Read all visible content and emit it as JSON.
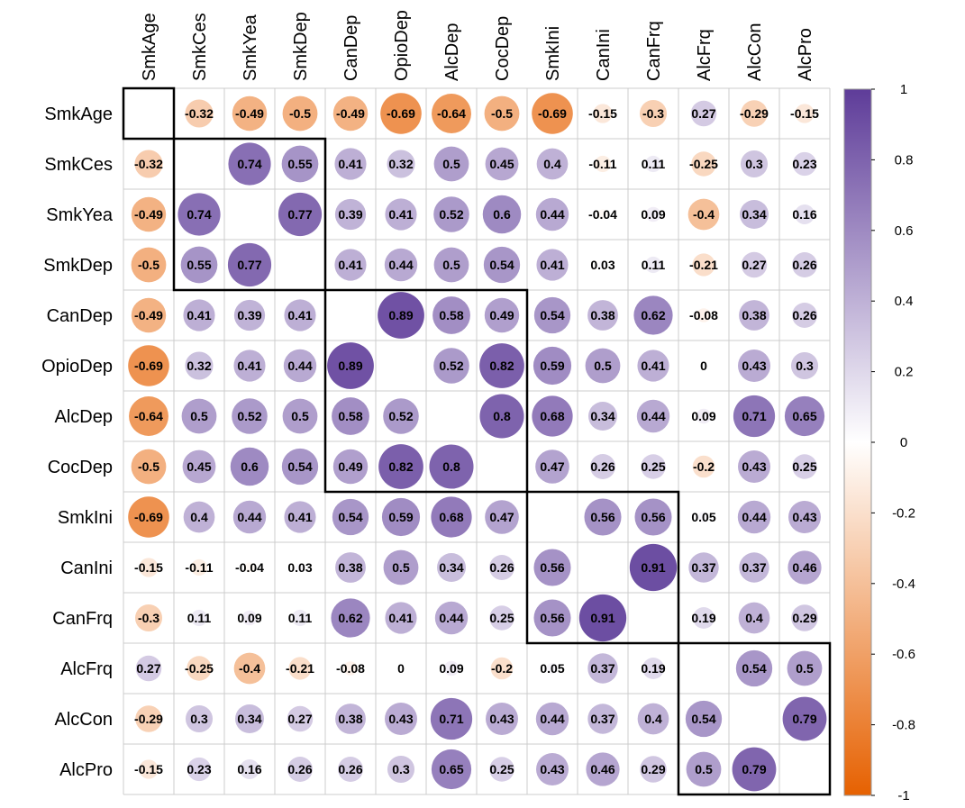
{
  "chart_data": {
    "type": "heatmap",
    "style": "correlation-circle",
    "title": "",
    "variables": [
      "SmkAge",
      "SmkCes",
      "SmkYea",
      "SmkDep",
      "CanDep",
      "OpioDep",
      "AlcDep",
      "CocDep",
      "SmkIni",
      "CanIni",
      "CanFrq",
      "AlcFrq",
      "AlcCon",
      "AlcPro"
    ],
    "matrix": [
      [
        null,
        -0.32,
        -0.49,
        -0.5,
        -0.49,
        -0.69,
        -0.64,
        -0.5,
        -0.69,
        -0.15,
        -0.3,
        0.27,
        -0.29,
        -0.15
      ],
      [
        -0.32,
        null,
        0.74,
        0.55,
        0.41,
        0.32,
        0.5,
        0.45,
        0.4,
        -0.11,
        0.11,
        -0.25,
        0.3,
        0.23
      ],
      [
        -0.49,
        0.74,
        null,
        0.77,
        0.39,
        0.41,
        0.52,
        0.6,
        0.44,
        -0.04,
        0.09,
        -0.4,
        0.34,
        0.16
      ],
      [
        -0.5,
        0.55,
        0.77,
        null,
        0.41,
        0.44,
        0.5,
        0.54,
        0.41,
        0.03,
        0.11,
        -0.21,
        0.27,
        0.26
      ],
      [
        -0.49,
        0.41,
        0.39,
        0.41,
        null,
        0.89,
        0.58,
        0.49,
        0.54,
        0.38,
        0.62,
        -0.08,
        0.38,
        0.26
      ],
      [
        -0.69,
        0.32,
        0.41,
        0.44,
        0.89,
        null,
        0.52,
        0.82,
        0.59,
        0.5,
        0.41,
        0,
        0.43,
        0.3
      ],
      [
        -0.64,
        0.5,
        0.52,
        0.5,
        0.58,
        0.52,
        null,
        0.8,
        0.68,
        0.34,
        0.44,
        0.09,
        0.71,
        0.65
      ],
      [
        -0.5,
        0.45,
        0.6,
        0.54,
        0.49,
        0.82,
        0.8,
        null,
        0.47,
        0.26,
        0.25,
        -0.2,
        0.43,
        0.25
      ],
      [
        -0.69,
        0.4,
        0.44,
        0.41,
        0.54,
        0.59,
        0.68,
        0.47,
        null,
        0.56,
        0.56,
        0.05,
        0.44,
        0.43
      ],
      [
        -0.15,
        -0.11,
        -0.04,
        0.03,
        0.38,
        0.5,
        0.34,
        0.26,
        0.56,
        null,
        0.91,
        0.37,
        0.37,
        0.46
      ],
      [
        -0.3,
        0.11,
        0.09,
        0.11,
        0.62,
        0.41,
        0.44,
        0.25,
        0.56,
        0.91,
        null,
        0.19,
        0.4,
        0.29
      ],
      [
        0.27,
        -0.25,
        -0.4,
        -0.21,
        -0.08,
        0,
        0.09,
        -0.2,
        0.05,
        0.37,
        0.19,
        null,
        0.54,
        0.5
      ],
      [
        -0.29,
        0.3,
        0.34,
        0.27,
        0.38,
        0.43,
        0.71,
        0.43,
        0.44,
        0.37,
        0.4,
        0.54,
        null,
        0.79
      ],
      [
        -0.15,
        0.23,
        0.16,
        0.26,
        0.26,
        0.3,
        0.65,
        0.25,
        0.43,
        0.46,
        0.29,
        0.5,
        0.79,
        null
      ]
    ],
    "cluster_blocks": [
      {
        "start": 0,
        "end": 0
      },
      {
        "start": 1,
        "end": 3
      },
      {
        "start": 4,
        "end": 7
      },
      {
        "start": 8,
        "end": 10
      },
      {
        "start": 11,
        "end": 13
      }
    ],
    "colorbar": {
      "range": [
        -1,
        1
      ],
      "ticks": [
        "1",
        "0.8",
        "0.6",
        "0.4",
        "0.2",
        "0",
        "-0.2",
        "-0.4",
        "-0.6",
        "-0.8",
        "-1"
      ],
      "tick_values": [
        1,
        0.8,
        0.6,
        0.4,
        0.2,
        0,
        -0.2,
        -0.4,
        -0.6,
        -0.8,
        -1
      ],
      "negative_color": "#E66101",
      "zero_color": "#FFFFFF",
      "positive_color": "#5E3C99"
    },
    "grid": true,
    "legend_position": "right"
  }
}
